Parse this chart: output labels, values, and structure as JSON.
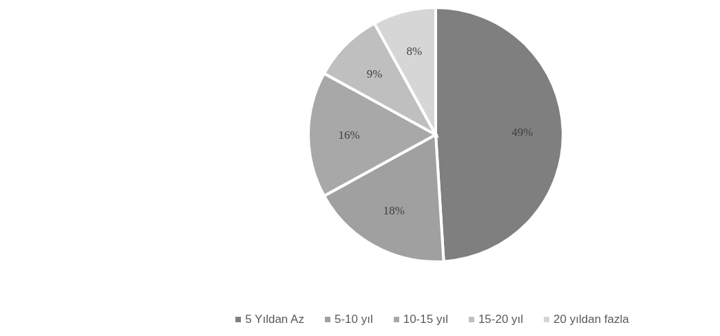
{
  "chart_data": {
    "type": "pie",
    "categories": [
      "5 Yıldan Az",
      "5-10 yıl",
      "10-15 yıl",
      "15-20 yıl",
      "20 yıldan fazla"
    ],
    "values": [
      49,
      18,
      16,
      9,
      8
    ],
    "colors": [
      "#7f7f7f",
      "#a0a0a0",
      "#a8a8a8",
      "#bfbfbf",
      "#d6d6d6"
    ],
    "value_labels": [
      "49%",
      "18%",
      "16%",
      "9%",
      "8%"
    ],
    "legend": "bottom"
  }
}
